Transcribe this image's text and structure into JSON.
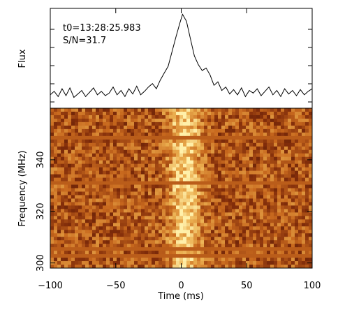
{
  "chart_data": [
    {
      "type": "line",
      "panel": "pulse-profile",
      "title": "",
      "xlabel": "",
      "ylabel": "Flux",
      "xlim": [
        -100,
        100
      ],
      "annotations": [
        "t0=13:28:25.983",
        "S/N=31.7"
      ],
      "series": [
        {
          "x": [
            -100,
            -97,
            -94,
            -91,
            -88,
            -85,
            -82,
            -79,
            -76,
            -73,
            -70,
            -67,
            -64,
            -61,
            -58,
            -55,
            -52,
            -49,
            -46,
            -43,
            -40,
            -37,
            -34,
            -31,
            -28,
            -25,
            -22,
            -19,
            -16,
            -13,
            -10,
            -7,
            -4,
            -1,
            1,
            4,
            7,
            10,
            13,
            16,
            19,
            22,
            25,
            28,
            31,
            34,
            37,
            40,
            43,
            46,
            49,
            52,
            55,
            58,
            61,
            64,
            67,
            70,
            73,
            76,
            79,
            82,
            85,
            88,
            91,
            94,
            97,
            100
          ],
          "values": [
            0.05,
            0.09,
            0.03,
            0.12,
            0.04,
            0.13,
            0.02,
            0.06,
            0.1,
            0.03,
            0.08,
            0.13,
            0.05,
            0.09,
            0.04,
            0.07,
            0.14,
            0.05,
            0.1,
            0.03,
            0.12,
            0.06,
            0.15,
            0.05,
            0.09,
            0.14,
            0.18,
            0.12,
            0.22,
            0.3,
            0.38,
            0.55,
            0.72,
            0.88,
            0.98,
            0.9,
            0.7,
            0.5,
            0.4,
            0.33,
            0.36,
            0.28,
            0.16,
            0.2,
            0.1,
            0.14,
            0.06,
            0.11,
            0.05,
            0.13,
            0.03,
            0.1,
            0.07,
            0.12,
            0.04,
            0.09,
            0.14,
            0.05,
            0.1,
            0.03,
            0.12,
            0.06,
            0.1,
            0.04,
            0.11,
            0.05,
            0.09,
            0.12
          ]
        }
      ]
    },
    {
      "type": "heatmap",
      "panel": "dynamic-spectrum",
      "title": "",
      "xlabel": "Time (ms)",
      "ylabel": "Frequency (MHz)",
      "xlim": [
        -100,
        100
      ],
      "ylim": [
        298,
        360
      ],
      "xticks": [
        -100,
        -50,
        0,
        50,
        100
      ],
      "yticks": [
        300,
        320,
        340
      ],
      "pulse_center_ms": 3,
      "pulse_width_ms": 12,
      "masked_frequency_bands_mhz": [
        349,
        331,
        305,
        303
      ]
    }
  ]
}
